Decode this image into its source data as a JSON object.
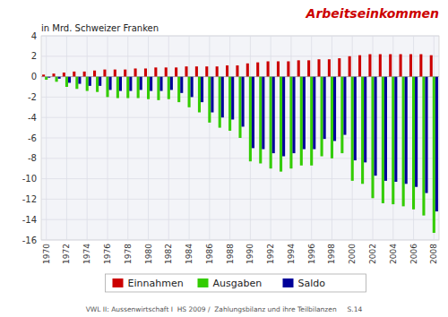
{
  "chart_data": {
    "type": "bar",
    "title": "Arbeitseinkommen",
    "subtitle": "in Mrd. Schweizer Franken",
    "annotations": [
      "VWL II: Aussenwirtschaft I  HS 2009 /  Zahlungsbilanz und ihre Teilbilanzen     S.14"
    ],
    "categories": [
      "1970",
      null,
      "1972",
      null,
      "1974",
      null,
      "1976",
      null,
      "1978",
      null,
      "1980",
      null,
      "1982",
      null,
      "1984",
      null,
      "1986",
      null,
      "1988",
      null,
      "1990",
      null,
      "1992",
      null,
      "1994",
      null,
      "1996",
      null,
      "1998",
      null,
      "2000",
      null,
      "2002",
      null,
      "2004",
      null,
      "2006",
      null,
      "2008"
    ],
    "series": [
      {
        "name": "Einnahmen",
        "color": "#cc0000",
        "values": [
          0.2,
          0.3,
          0.4,
          0.5,
          0.5,
          0.6,
          0.7,
          0.7,
          0.7,
          0.8,
          0.8,
          0.9,
          0.9,
          0.9,
          1.0,
          1.0,
          1.0,
          1.0,
          1.1,
          1.1,
          1.3,
          1.4,
          1.5,
          1.5,
          1.5,
          1.6,
          1.6,
          1.7,
          1.7,
          1.8,
          2.0,
          2.1,
          2.2,
          2.2,
          2.2,
          2.2,
          2.2,
          2.2,
          2.1
        ]
      },
      {
        "name": "Ausgaben",
        "color": "#33cc00",
        "values": [
          -0.3,
          -0.5,
          -1.0,
          -1.2,
          -1.4,
          -1.5,
          -2.0,
          -2.1,
          -2.1,
          -2.1,
          -2.2,
          -2.3,
          -2.2,
          -2.5,
          -3.0,
          -3.5,
          -4.5,
          -5.0,
          -5.3,
          -6.0,
          -8.3,
          -8.5,
          -9.0,
          -9.3,
          -9.0,
          -8.7,
          -8.7,
          -7.8,
          -8.0,
          -7.5,
          -10.2,
          -10.5,
          -11.9,
          -12.4,
          -12.5,
          -12.7,
          -13.0,
          -13.6,
          -15.3
        ]
      },
      {
        "name": "Saldo",
        "color": "#000099",
        "values": [
          -0.1,
          -0.2,
          -0.6,
          -0.7,
          -0.9,
          -0.9,
          -1.3,
          -1.4,
          -1.4,
          -1.3,
          -1.4,
          -1.4,
          -1.3,
          -1.6,
          -2.0,
          -2.5,
          -3.5,
          -4.0,
          -4.2,
          -4.9,
          -7.0,
          -7.1,
          -7.5,
          -7.8,
          -7.5,
          -7.1,
          -7.1,
          -6.1,
          -6.3,
          -5.7,
          -8.2,
          -8.4,
          -9.7,
          -10.2,
          -10.3,
          -10.5,
          -10.8,
          -11.4,
          -13.2
        ]
      }
    ],
    "ylim": [
      -16,
      4
    ],
    "yticks": [
      -16,
      -14,
      -12,
      -10,
      -8,
      -6,
      -4,
      -2,
      0,
      2,
      4
    ],
    "grid": true,
    "legend": "bottom"
  }
}
